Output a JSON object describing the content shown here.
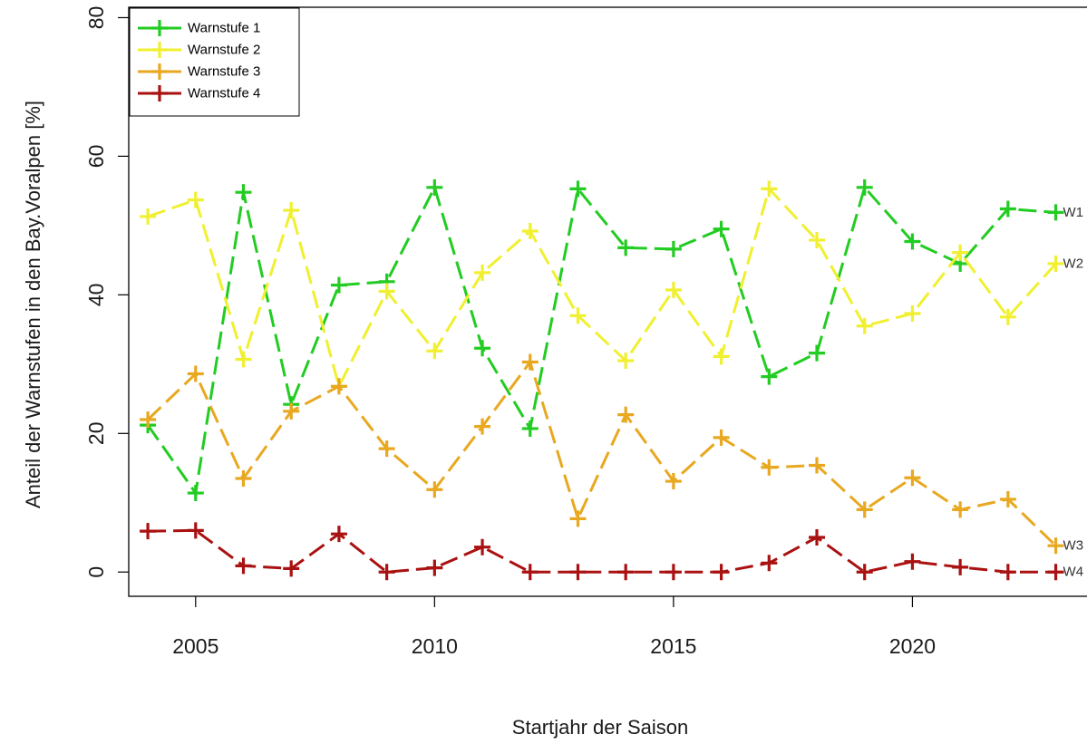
{
  "chart_data": {
    "type": "line",
    "title": "",
    "xlabel": "Startjahr der Saison",
    "ylabel": "Anteil der Warnstufen in den Bay.Voralpen [%]",
    "xlim": [
      2003.6,
      2023.9
    ],
    "ylim": [
      -3.5,
      81.5
    ],
    "x_ticks": [
      2005,
      2010,
      2015,
      2020
    ],
    "y_ticks": [
      0,
      20,
      40,
      60,
      80
    ],
    "grid": false,
    "legend_position": "top-left",
    "x": [
      2004,
      2005,
      2006,
      2007,
      2008,
      2009,
      2010,
      2011,
      2012,
      2013,
      2014,
      2015,
      2016,
      2017,
      2018,
      2019,
      2020,
      2021,
      2022,
      2023
    ],
    "series": [
      {
        "name": "Warnstufe 1",
        "end_label": "W1",
        "color": "#22cc22",
        "values": [
          21.2,
          11.4,
          54.8,
          24.2,
          41.4,
          41.9,
          55.5,
          32.3,
          20.7,
          55.3,
          46.8,
          46.6,
          49.5,
          28.2,
          31.6,
          55.5,
          47.7,
          44.5,
          52.4,
          51.9
        ]
      },
      {
        "name": "Warnstufe 2",
        "end_label": "W2",
        "color": "#f0f030",
        "values": [
          51.3,
          53.7,
          30.7,
          52.2,
          26.8,
          40.5,
          31.9,
          43.2,
          49.2,
          37.0,
          30.5,
          40.7,
          31.1,
          55.3,
          47.9,
          35.5,
          37.3,
          46.1,
          36.8,
          44.5
        ]
      },
      {
        "name": "Warnstufe 3",
        "end_label": "W3",
        "color": "#e8a820",
        "values": [
          22.0,
          28.6,
          13.5,
          23.2,
          26.8,
          17.8,
          11.9,
          21.0,
          30.3,
          7.7,
          22.7,
          13.1,
          19.4,
          15.1,
          15.4,
          9.0,
          13.6,
          9.0,
          10.5,
          3.8
        ]
      },
      {
        "name": "Warnstufe 4",
        "end_label": "W4",
        "color": "#aa1111",
        "values": [
          5.9,
          6.0,
          0.9,
          0.5,
          5.5,
          0.0,
          0.6,
          3.6,
          0.0,
          0.0,
          0.0,
          0.0,
          0.0,
          1.3,
          5.0,
          0.0,
          1.5,
          0.7,
          0.0,
          0.0
        ]
      }
    ]
  }
}
